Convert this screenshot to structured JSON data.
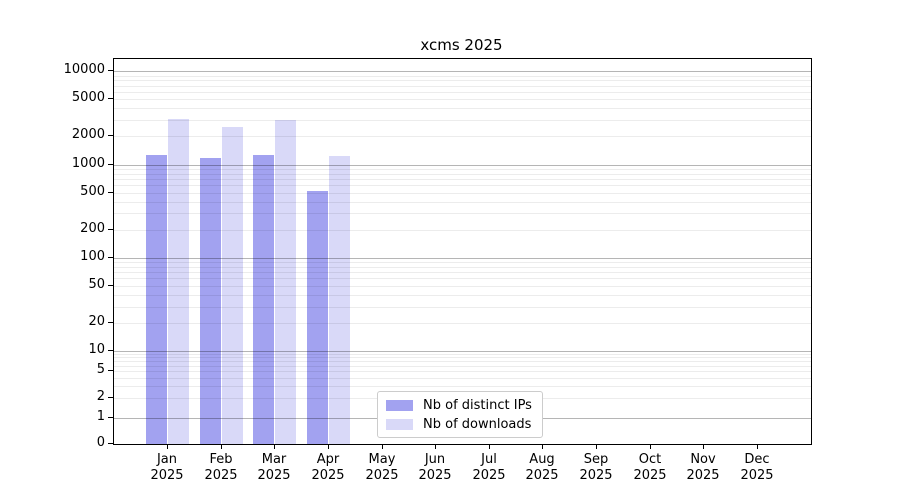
{
  "title": "xcms 2025",
  "chart_data": {
    "type": "bar",
    "title": "xcms 2025",
    "categories": [
      "Jan",
      "Feb",
      "Mar",
      "Apr",
      "May",
      "Jun",
      "Jul",
      "Aug",
      "Sep",
      "Oct",
      "Nov",
      "Dec"
    ],
    "tick_sublabel": "2025",
    "series": [
      {
        "name": "Nb of distinct IPs",
        "color": "#a2a2f0",
        "values": [
          1260,
          1170,
          1250,
          520,
          null,
          null,
          null,
          null,
          null,
          null,
          null,
          null
        ]
      },
      {
        "name": "Nb of downloads",
        "color": "#d9d9f8",
        "values": [
          3060,
          2520,
          3020,
          1220,
          null,
          null,
          null,
          null,
          null,
          null,
          null,
          null
        ]
      }
    ],
    "xlabel": "",
    "ylabel": "",
    "yscale": "log (with 0 baseline)",
    "yticks": [
      10000,
      5000,
      2000,
      1000,
      500,
      200,
      100,
      50,
      20,
      10,
      5,
      2,
      1,
      0
    ],
    "ylim": [
      0,
      13600
    ],
    "grid": "horizontal major and minor",
    "legend_position": "lower center"
  },
  "colors": {
    "axis": "#000000",
    "major_grid": "#b5b5b5",
    "minor_grid": "#ebebeb",
    "legend_border": "#cccccc",
    "background": "#ffffff"
  }
}
